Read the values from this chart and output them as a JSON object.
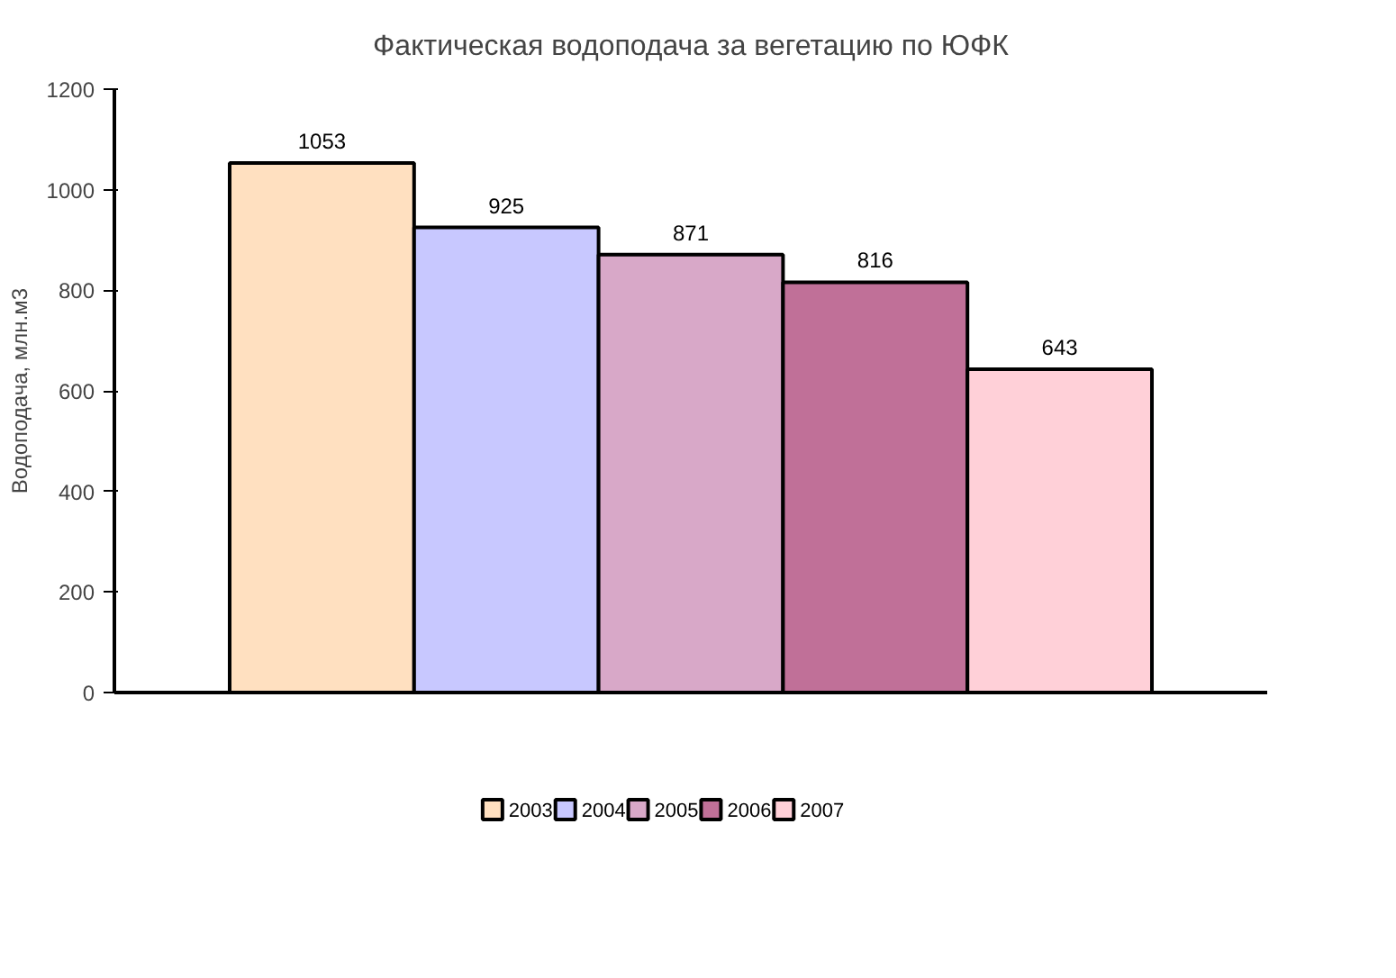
{
  "chart_data": {
    "type": "bar",
    "title": "Фактическая водоподача за вегетацию по ЮФК",
    "ylabel": "Водоподача, млн.м3",
    "categories": [
      null
    ],
    "series": [
      {
        "name": "2003",
        "color": "#ffe0c0",
        "values": [
          1053
        ]
      },
      {
        "name": "2004",
        "color": "#c8c8ff",
        "values": [
          925
        ]
      },
      {
        "name": "2005",
        "color": "#d8a8c8",
        "values": [
          871
        ]
      },
      {
        "name": "2006",
        "color": "#c07098",
        "values": [
          816
        ]
      },
      {
        "name": "2007",
        "color": "#ffd0d8",
        "values": [
          643
        ]
      }
    ],
    "ylim": [
      0,
      1200
    ],
    "yticks": [
      0,
      200,
      400,
      600,
      800,
      1000,
      1200
    ],
    "data_labels": true,
    "legend": "bottom",
    "grid": false,
    "tick_labels": "y"
  }
}
